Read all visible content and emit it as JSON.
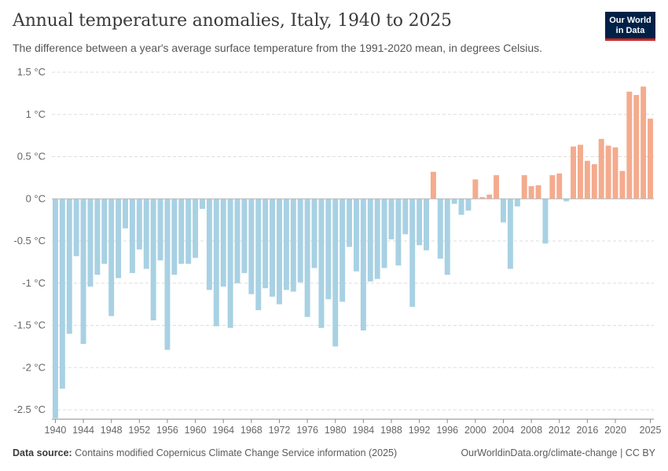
{
  "header": {
    "title": "Annual temperature anomalies, Italy, 1940 to 2025",
    "subtitle": "The difference between a year's average surface temperature from the 1991-2020 mean, in degrees Celsius.",
    "logo_line1": "Our World",
    "logo_line2": "in Data"
  },
  "footer": {
    "source_label": "Data source:",
    "source_text": "Contains modified Copernicus Climate Change Service information (2025)",
    "right_text": "OurWorldinData.org/climate-change | CC BY"
  },
  "colors": {
    "positive": "#f4ab8e",
    "negative": "#a8d1e3",
    "grid": "#dddddd",
    "axis": "#8a8a8a"
  },
  "chart_data": {
    "type": "bar",
    "title": "Annual temperature anomalies, Italy, 1940 to 2025",
    "unit": "°C",
    "ylim": [
      -2.5,
      1.5
    ],
    "yticks": [
      1.5,
      1,
      0.5,
      0,
      -0.5,
      -1,
      -1.5,
      -2,
      -2.5
    ],
    "ytick_labels": [
      "1.5 °C",
      "1 °C",
      "0.5 °C",
      "0 °C",
      "-0.5 °C",
      "-1 °C",
      "-1.5 °C",
      "-2 °C",
      "-2.5 °C"
    ],
    "xtick_labels": [
      "1940",
      "1944",
      "1948",
      "1952",
      "1956",
      "1960",
      "1964",
      "1968",
      "1972",
      "1976",
      "1980",
      "1984",
      "1988",
      "1992",
      "1996",
      "2000",
      "2004",
      "2008",
      "2012",
      "2016",
      "2020",
      "2025"
    ],
    "grid": "horizontal dashed",
    "years": [
      1940,
      1941,
      1942,
      1943,
      1944,
      1945,
      1946,
      1947,
      1948,
      1949,
      1950,
      1951,
      1952,
      1953,
      1954,
      1955,
      1956,
      1957,
      1958,
      1959,
      1960,
      1961,
      1962,
      1963,
      1964,
      1965,
      1966,
      1967,
      1968,
      1969,
      1970,
      1971,
      1972,
      1973,
      1974,
      1975,
      1976,
      1977,
      1978,
      1979,
      1980,
      1981,
      1982,
      1983,
      1984,
      1985,
      1986,
      1987,
      1988,
      1989,
      1990,
      1991,
      1992,
      1993,
      1994,
      1995,
      1996,
      1997,
      1998,
      1999,
      2000,
      2001,
      2002,
      2003,
      2004,
      2005,
      2006,
      2007,
      2008,
      2009,
      2010,
      2011,
      2012,
      2013,
      2014,
      2015,
      2016,
      2017,
      2018,
      2019,
      2020,
      2021,
      2022,
      2023,
      2024,
      2025
    ],
    "values": [
      -2.6,
      -2.25,
      -1.6,
      -0.68,
      -1.72,
      -1.04,
      -0.9,
      -0.77,
      -1.39,
      -0.94,
      -0.35,
      -0.88,
      -0.6,
      -0.83,
      -1.44,
      -0.73,
      -1.79,
      -0.9,
      -0.77,
      -0.77,
      -0.7,
      -0.12,
      -1.08,
      -1.51,
      -1.04,
      -1.53,
      -1.0,
      -0.88,
      -1.13,
      -1.32,
      -1.06,
      -1.16,
      -1.25,
      -1.08,
      -1.1,
      -0.99,
      -1.4,
      -0.82,
      -1.53,
      -1.19,
      -1.75,
      -1.22,
      -0.57,
      -0.86,
      -1.56,
      -0.98,
      -0.95,
      -0.82,
      -0.48,
      -0.79,
      -0.42,
      -1.28,
      -0.55,
      -0.61,
      0.32,
      -0.71,
      -0.9,
      -0.06,
      -0.19,
      -0.14,
      0.23,
      0.02,
      0.05,
      0.28,
      -0.28,
      -0.83,
      -0.09,
      0.28,
      0.15,
      0.16,
      -0.53,
      0.28,
      0.3,
      -0.03,
      0.62,
      0.64,
      0.45,
      0.41,
      0.71,
      0.63,
      0.61,
      0.33,
      1.27,
      1.23,
      1.33,
      0.95
    ]
  }
}
